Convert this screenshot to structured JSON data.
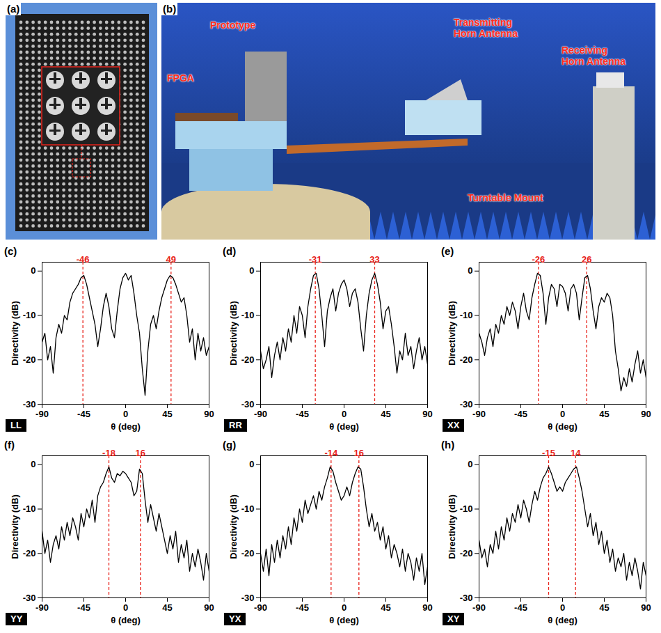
{
  "figure": {
    "panels": [
      {
        "label": "(a)"
      },
      {
        "label": "(b)",
        "annotations": [
          "FPGA",
          "Prototype",
          "Transmitting Horn Antenna",
          "Receiving Horn Antenna",
          "Turntable Mount"
        ]
      }
    ]
  },
  "chart_data": [
    {
      "type": "line",
      "panel": "(c)",
      "label": "LL",
      "xlabel": "θ (deg)",
      "ylabel": "Directivity (dB)",
      "color": "#000000",
      "x": [
        -90,
        -87,
        -84,
        -81,
        -78,
        -75,
        -72,
        -69,
        -66,
        -63,
        -60,
        -57,
        -54,
        -51,
        -48,
        -45,
        -42,
        -39,
        -36,
        -33,
        -30,
        -27,
        -24,
        -21,
        -18,
        -15,
        -12,
        -9,
        -6,
        -3,
        0,
        3,
        6,
        9,
        12,
        15,
        18,
        21,
        24,
        27,
        30,
        33,
        36,
        39,
        42,
        45,
        48,
        51,
        54,
        57,
        60,
        63,
        66,
        69,
        72,
        75,
        78,
        81,
        84,
        87,
        90
      ],
      "values": [
        -16,
        -14,
        -20,
        -17,
        -23,
        -15,
        -12,
        -14,
        -10,
        -11,
        -7,
        -5,
        -4,
        -3,
        -1.5,
        -1,
        -3,
        -6,
        -9,
        -12,
        -17,
        -13,
        -8,
        -5,
        -8,
        -13,
        -15,
        -9,
        -4,
        -1.5,
        -0.5,
        -2,
        -1,
        -5,
        -10,
        -14,
        -22,
        -28,
        -18,
        -12,
        -10,
        -13,
        -9,
        -6,
        -4,
        -2,
        -1,
        -1.5,
        -3,
        -5,
        -7,
        -6,
        -10,
        -16,
        -13,
        -20,
        -14,
        -18,
        -15,
        -19,
        -17
      ],
      "peaks": {
        "values": [
          -46,
          49
        ],
        "color": "#e8231b",
        "line_style": "dashed"
      },
      "xlim": [
        -90,
        90
      ],
      "xticks": [
        -90,
        -45,
        0,
        45,
        90
      ],
      "ylim": [
        -30,
        2
      ],
      "yticks": [
        -30,
        -20,
        -10,
        0
      ]
    },
    {
      "type": "line",
      "panel": "(d)",
      "label": "RR",
      "xlabel": "θ (deg)",
      "ylabel": "Directivity (dB)",
      "color": "#000000",
      "x": [
        -90,
        -87,
        -84,
        -81,
        -78,
        -75,
        -72,
        -69,
        -66,
        -63,
        -60,
        -57,
        -54,
        -51,
        -48,
        -45,
        -42,
        -39,
        -36,
        -33,
        -30,
        -27,
        -24,
        -21,
        -18,
        -15,
        -12,
        -9,
        -6,
        -3,
        0,
        3,
        6,
        9,
        12,
        15,
        18,
        21,
        24,
        27,
        30,
        33,
        36,
        39,
        42,
        45,
        48,
        51,
        54,
        57,
        60,
        63,
        66,
        69,
        72,
        75,
        78,
        81,
        84,
        87,
        90
      ],
      "values": [
        -18,
        -22,
        -20,
        -17,
        -24,
        -19,
        -16,
        -20,
        -15,
        -18,
        -13,
        -16,
        -10,
        -14,
        -8,
        -10,
        -15,
        -8,
        -4,
        -1,
        -0.5,
        -4,
        -10,
        -17,
        -9,
        -6,
        -4,
        -9,
        -5,
        -3,
        -2,
        -4,
        -8,
        -5,
        -4,
        -7,
        -13,
        -18,
        -10,
        -5,
        -2,
        -0.5,
        -3,
        -7,
        -13,
        -9,
        -8,
        -12,
        -17,
        -23,
        -18,
        -20,
        -14,
        -19,
        -17,
        -22,
        -18,
        -15,
        -20,
        -17,
        -21
      ],
      "peaks": {
        "values": [
          -31,
          33
        ],
        "color": "#e8231b",
        "line_style": "dashed"
      },
      "xlim": [
        -90,
        90
      ],
      "xticks": [
        -90,
        -45,
        0,
        45,
        90
      ],
      "ylim": [
        -30,
        2
      ],
      "yticks": [
        -30,
        -20,
        -10,
        0
      ]
    },
    {
      "type": "line",
      "panel": "(e)",
      "label": "XX",
      "xlabel": "θ (deg)",
      "ylabel": "Directivity (dB)",
      "color": "#000000",
      "x": [
        -90,
        -87,
        -84,
        -81,
        -78,
        -75,
        -72,
        -69,
        -66,
        -63,
        -60,
        -57,
        -54,
        -51,
        -48,
        -45,
        -42,
        -39,
        -36,
        -33,
        -30,
        -27,
        -24,
        -21,
        -18,
        -15,
        -12,
        -9,
        -6,
        -3,
        0,
        3,
        6,
        9,
        12,
        15,
        18,
        21,
        24,
        27,
        30,
        33,
        36,
        39,
        42,
        45,
        48,
        51,
        54,
        57,
        60,
        63,
        66,
        69,
        72,
        75,
        78,
        81,
        84,
        87,
        90
      ],
      "values": [
        -14,
        -16,
        -19,
        -15,
        -13,
        -17,
        -12,
        -14,
        -10,
        -12,
        -8,
        -10,
        -7,
        -9,
        -13,
        -8,
        -5,
        -9,
        -11,
        -6,
        -3,
        -0.5,
        -1,
        -5,
        -12,
        -6,
        -3,
        -4,
        -8,
        -3,
        -3.5,
        -5,
        -9,
        -4,
        -3,
        -5,
        -11,
        -6,
        -1.5,
        -1,
        -4,
        -9,
        -13,
        -8,
        -6,
        -7,
        -5,
        -6,
        -10,
        -18,
        -22,
        -27,
        -24,
        -26,
        -22,
        -25,
        -21,
        -18,
        -23,
        -20,
        -24
      ],
      "peaks": {
        "values": [
          -26,
          26
        ],
        "color": "#e8231b",
        "line_style": "dashed"
      },
      "xlim": [
        -90,
        90
      ],
      "xticks": [
        -90,
        -45,
        0,
        45,
        90
      ],
      "ylim": [
        -30,
        2
      ],
      "yticks": [
        -30,
        -20,
        -10,
        0
      ]
    },
    {
      "type": "line",
      "panel": "(f)",
      "label": "YY",
      "xlabel": "θ (deg)",
      "ylabel": "Directivity (dB)",
      "color": "#000000",
      "x": [
        -90,
        -87,
        -84,
        -81,
        -78,
        -75,
        -72,
        -69,
        -66,
        -63,
        -60,
        -57,
        -54,
        -51,
        -48,
        -45,
        -42,
        -39,
        -36,
        -33,
        -30,
        -27,
        -24,
        -21,
        -18,
        -15,
        -12,
        -9,
        -6,
        -3,
        0,
        3,
        6,
        9,
        12,
        15,
        18,
        21,
        24,
        27,
        30,
        33,
        36,
        39,
        42,
        45,
        48,
        51,
        54,
        57,
        60,
        63,
        66,
        69,
        72,
        75,
        78,
        81,
        84,
        87,
        90
      ],
      "values": [
        -15,
        -20,
        -17,
        -22,
        -18,
        -16,
        -19,
        -14,
        -17,
        -13,
        -16,
        -12,
        -14,
        -17,
        -11,
        -14,
        -10,
        -12,
        -8,
        -13,
        -7,
        -5,
        -4,
        -2,
        -0.5,
        -3,
        -4,
        -2,
        -2.5,
        -1.5,
        -2,
        -3,
        -4,
        -7,
        -6,
        -1,
        -2,
        -8,
        -13,
        -9,
        -12,
        -15,
        -11,
        -14,
        -17,
        -20,
        -16,
        -19,
        -15,
        -22,
        -18,
        -21,
        -17,
        -24,
        -20,
        -23,
        -19,
        -22,
        -26,
        -20,
        -24
      ],
      "peaks": {
        "values": [
          -18,
          16
        ],
        "color": "#e8231b",
        "line_style": "dashed"
      },
      "xlim": [
        -90,
        90
      ],
      "xticks": [
        -90,
        -45,
        0,
        45,
        90
      ],
      "ylim": [
        -30,
        2
      ],
      "yticks": [
        -30,
        -20,
        -10,
        0
      ]
    },
    {
      "type": "line",
      "panel": "(g)",
      "label": "YX",
      "xlabel": "θ (deg)",
      "ylabel": "Directivity (dB)",
      "color": "#000000",
      "x": [
        -90,
        -87,
        -84,
        -81,
        -78,
        -75,
        -72,
        -69,
        -66,
        -63,
        -60,
        -57,
        -54,
        -51,
        -48,
        -45,
        -42,
        -39,
        -36,
        -33,
        -30,
        -27,
        -24,
        -21,
        -18,
        -15,
        -12,
        -9,
        -6,
        -3,
        0,
        3,
        6,
        9,
        12,
        15,
        18,
        21,
        24,
        27,
        30,
        33,
        36,
        39,
        42,
        45,
        48,
        51,
        54,
        57,
        60,
        63,
        66,
        69,
        72,
        75,
        78,
        81,
        84,
        87,
        90
      ],
      "values": [
        -20,
        -24,
        -19,
        -25,
        -18,
        -22,
        -17,
        -21,
        -16,
        -19,
        -14,
        -18,
        -12,
        -15,
        -10,
        -13,
        -8,
        -11,
        -9,
        -7,
        -10,
        -6,
        -8,
        -5,
        -3,
        -0.5,
        -1.5,
        -4,
        -6,
        -8,
        -7,
        -5,
        -7,
        -4,
        -2,
        -0.5,
        -1,
        -5,
        -10,
        -14,
        -11,
        -15,
        -13,
        -17,
        -14,
        -19,
        -16,
        -21,
        -18,
        -20,
        -23,
        -19,
        -24,
        -20,
        -22,
        -26,
        -21,
        -24,
        -20,
        -27,
        -23
      ],
      "peaks": {
        "values": [
          -14,
          16
        ],
        "color": "#e8231b",
        "line_style": "dashed"
      },
      "xlim": [
        -90,
        90
      ],
      "xticks": [
        -90,
        -45,
        0,
        45,
        90
      ],
      "ylim": [
        -30,
        2
      ],
      "yticks": [
        -30,
        -20,
        -10,
        0
      ]
    },
    {
      "type": "line",
      "panel": "(h)",
      "label": "XY",
      "xlabel": "θ (deg)",
      "ylabel": "Directivity (dB)",
      "color": "#000000",
      "x": [
        -90,
        -87,
        -84,
        -81,
        -78,
        -75,
        -72,
        -69,
        -66,
        -63,
        -60,
        -57,
        -54,
        -51,
        -48,
        -45,
        -42,
        -39,
        -36,
        -33,
        -30,
        -27,
        -24,
        -21,
        -18,
        -15,
        -12,
        -9,
        -6,
        -3,
        0,
        3,
        6,
        9,
        12,
        15,
        18,
        21,
        24,
        27,
        30,
        33,
        36,
        39,
        42,
        45,
        48,
        51,
        54,
        57,
        60,
        63,
        66,
        69,
        72,
        75,
        78,
        81,
        84,
        87,
        90
      ],
      "values": [
        -17,
        -21,
        -19,
        -23,
        -18,
        -20,
        -15,
        -19,
        -14,
        -17,
        -12,
        -15,
        -11,
        -13,
        -9,
        -12,
        -8,
        -10,
        -13,
        -9,
        -6,
        -8,
        -5,
        -3,
        -2,
        -0.5,
        -2,
        -4,
        -6,
        -5,
        -6,
        -4,
        -3,
        -2,
        -1,
        -0.5,
        -3,
        -6,
        -10,
        -14,
        -11,
        -16,
        -13,
        -18,
        -15,
        -20,
        -17,
        -22,
        -19,
        -24,
        -21,
        -23,
        -20,
        -26,
        -22,
        -25,
        -21,
        -24,
        -28,
        -22,
        -25
      ],
      "peaks": {
        "values": [
          -15,
          14
        ],
        "color": "#e8231b",
        "line_style": "dashed"
      },
      "xlim": [
        -90,
        90
      ],
      "xticks": [
        -90,
        -45,
        0,
        45,
        90
      ],
      "ylim": [
        -30,
        2
      ],
      "yticks": [
        -30,
        -20,
        -10,
        0
      ]
    }
  ]
}
